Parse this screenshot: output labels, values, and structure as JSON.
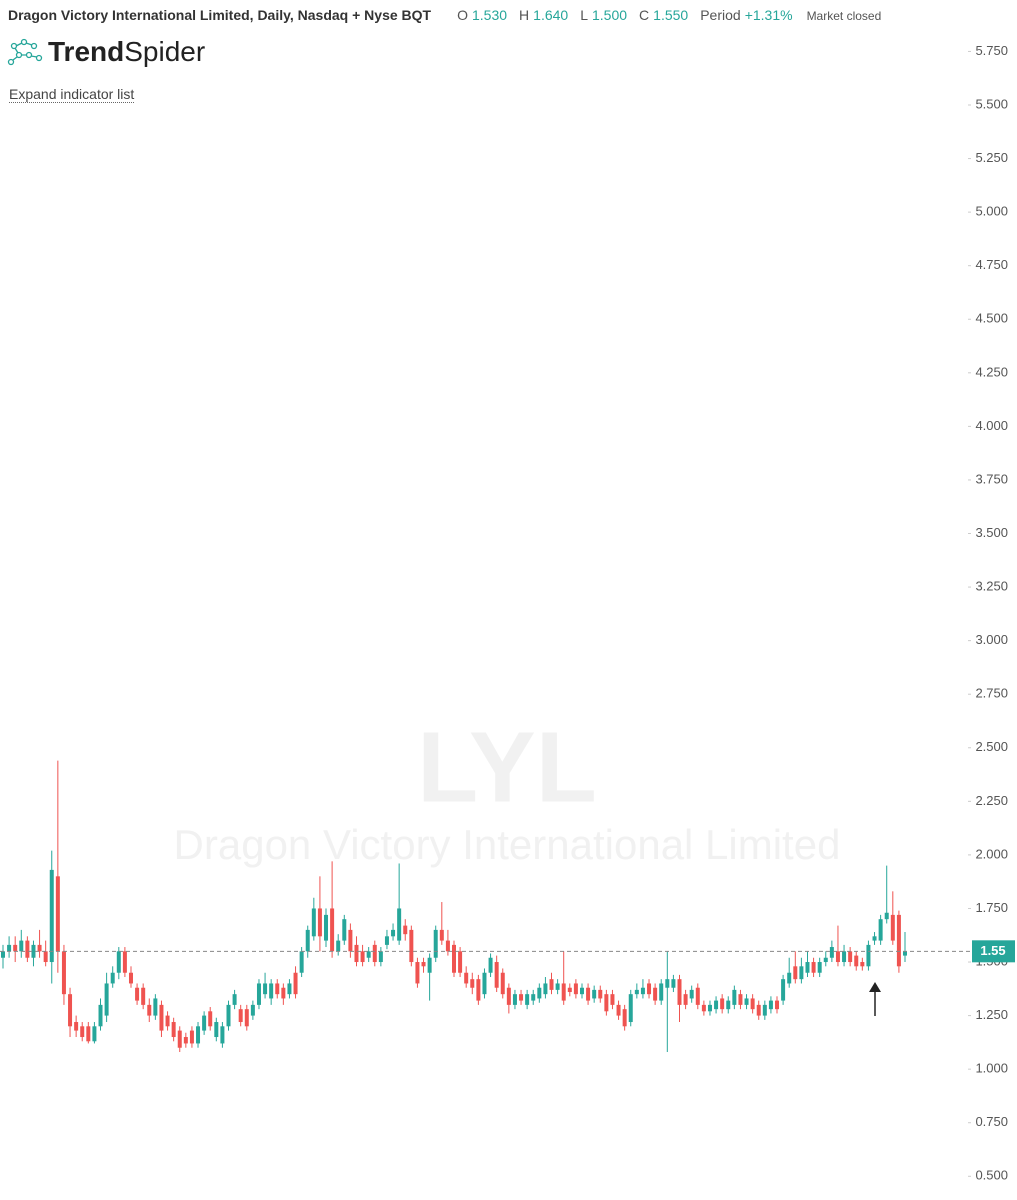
{
  "header": {
    "title": "Dragon Victory International Limited, Daily, Nasdaq + Nyse BQT",
    "ohlc": [
      {
        "key": "O",
        "value": "1.530"
      },
      {
        "key": "H",
        "value": "1.640"
      },
      {
        "key": "L",
        "value": "1.500"
      },
      {
        "key": "C",
        "value": "1.550"
      }
    ],
    "period_label": "Period",
    "period_value": "+1.31%",
    "status": "Market closed",
    "logo_bold": "Trend",
    "logo_regular": "Spider",
    "expand_link": "Expand indicator list"
  },
  "watermark": {
    "symbol": "LYL",
    "name": "Dragon Victory International Limited"
  },
  "chart_data": {
    "type": "candlestick",
    "up_color": "#26a69a",
    "down_color": "#ef5350",
    "ylim": [
      0.45,
      5.85
    ],
    "yticks": [
      {
        "value": 0.5,
        "label": "0.500"
      },
      {
        "value": 0.75,
        "label": "0.750"
      },
      {
        "value": 1.0,
        "label": "1.000"
      },
      {
        "value": 1.25,
        "label": "1.250"
      },
      {
        "value": 1.5,
        "label": "1.500"
      },
      {
        "value": 1.75,
        "label": "1.750"
      },
      {
        "value": 2.0,
        "label": "2.000"
      },
      {
        "value": 2.25,
        "label": "2.250"
      },
      {
        "value": 2.5,
        "label": "2.500"
      },
      {
        "value": 2.75,
        "label": "2.750"
      },
      {
        "value": 3.0,
        "label": "3.000"
      },
      {
        "value": 3.25,
        "label": "3.250"
      },
      {
        "value": 3.5,
        "label": "3.500"
      },
      {
        "value": 3.75,
        "label": "3.750"
      },
      {
        "value": 4.0,
        "label": "4.000"
      },
      {
        "value": 4.25,
        "label": "4.250"
      },
      {
        "value": 4.5,
        "label": "4.500"
      },
      {
        "value": 4.75,
        "label": "4.750"
      },
      {
        "value": 5.0,
        "label": "5.000"
      },
      {
        "value": 5.25,
        "label": "5.250"
      },
      {
        "value": 5.5,
        "label": "5.500"
      },
      {
        "value": 5.75,
        "label": "5.750"
      }
    ],
    "last_price": {
      "value": 1.55,
      "label": "1.55"
    },
    "ohlc": [
      [
        1.52,
        1.58,
        1.47,
        1.55
      ],
      [
        1.55,
        1.62,
        1.52,
        1.58
      ],
      [
        1.58,
        1.62,
        1.5,
        1.55
      ],
      [
        1.55,
        1.65,
        1.52,
        1.6
      ],
      [
        1.6,
        1.62,
        1.5,
        1.52
      ],
      [
        1.52,
        1.6,
        1.48,
        1.58
      ],
      [
        1.58,
        1.65,
        1.52,
        1.55
      ],
      [
        1.55,
        1.6,
        1.48,
        1.5
      ],
      [
        1.5,
        2.02,
        1.4,
        1.93
      ],
      [
        1.9,
        2.44,
        1.45,
        1.55
      ],
      [
        1.55,
        1.58,
        1.3,
        1.35
      ],
      [
        1.35,
        1.38,
        1.15,
        1.2
      ],
      [
        1.22,
        1.25,
        1.15,
        1.18
      ],
      [
        1.2,
        1.22,
        1.13,
        1.15
      ],
      [
        1.2,
        1.22,
        1.12,
        1.13
      ],
      [
        1.13,
        1.22,
        1.12,
        1.2
      ],
      [
        1.2,
        1.33,
        1.18,
        1.3
      ],
      [
        1.25,
        1.45,
        1.22,
        1.4
      ],
      [
        1.4,
        1.48,
        1.38,
        1.45
      ],
      [
        1.45,
        1.57,
        1.42,
        1.55
      ],
      [
        1.55,
        1.57,
        1.43,
        1.45
      ],
      [
        1.45,
        1.48,
        1.38,
        1.4
      ],
      [
        1.38,
        1.4,
        1.3,
        1.32
      ],
      [
        1.38,
        1.4,
        1.28,
        1.3
      ],
      [
        1.3,
        1.33,
        1.22,
        1.25
      ],
      [
        1.25,
        1.35,
        1.23,
        1.33
      ],
      [
        1.3,
        1.32,
        1.15,
        1.18
      ],
      [
        1.25,
        1.27,
        1.18,
        1.2
      ],
      [
        1.22,
        1.24,
        1.13,
        1.15
      ],
      [
        1.18,
        1.2,
        1.08,
        1.1
      ],
      [
        1.15,
        1.17,
        1.1,
        1.12
      ],
      [
        1.18,
        1.2,
        1.1,
        1.12
      ],
      [
        1.12,
        1.22,
        1.1,
        1.2
      ],
      [
        1.18,
        1.27,
        1.16,
        1.25
      ],
      [
        1.27,
        1.29,
        1.18,
        1.2
      ],
      [
        1.15,
        1.24,
        1.13,
        1.22
      ],
      [
        1.12,
        1.22,
        1.1,
        1.2
      ],
      [
        1.2,
        1.32,
        1.18,
        1.3
      ],
      [
        1.3,
        1.37,
        1.28,
        1.35
      ],
      [
        1.28,
        1.3,
        1.2,
        1.22
      ],
      [
        1.28,
        1.3,
        1.18,
        1.2
      ],
      [
        1.25,
        1.32,
        1.23,
        1.3
      ],
      [
        1.3,
        1.42,
        1.28,
        1.4
      ],
      [
        1.35,
        1.45,
        1.33,
        1.4
      ],
      [
        1.33,
        1.42,
        1.3,
        1.4
      ],
      [
        1.4,
        1.42,
        1.33,
        1.35
      ],
      [
        1.38,
        1.4,
        1.3,
        1.33
      ],
      [
        1.35,
        1.42,
        1.33,
        1.4
      ],
      [
        1.45,
        1.48,
        1.33,
        1.35
      ],
      [
        1.45,
        1.57,
        1.43,
        1.55
      ],
      [
        1.55,
        1.67,
        1.52,
        1.65
      ],
      [
        1.62,
        1.8,
        1.6,
        1.75
      ],
      [
        1.75,
        1.9,
        1.55,
        1.62
      ],
      [
        1.6,
        1.75,
        1.57,
        1.72
      ],
      [
        1.75,
        1.97,
        1.52,
        1.55
      ],
      [
        1.55,
        1.63,
        1.53,
        1.6
      ],
      [
        1.6,
        1.72,
        1.58,
        1.7
      ],
      [
        1.65,
        1.68,
        1.52,
        1.55
      ],
      [
        1.58,
        1.62,
        1.48,
        1.5
      ],
      [
        1.55,
        1.58,
        1.48,
        1.5
      ],
      [
        1.52,
        1.57,
        1.5,
        1.55
      ],
      [
        1.58,
        1.6,
        1.48,
        1.5
      ],
      [
        1.5,
        1.57,
        1.48,
        1.55
      ],
      [
        1.58,
        1.65,
        1.56,
        1.62
      ],
      [
        1.62,
        1.68,
        1.6,
        1.65
      ],
      [
        1.6,
        1.96,
        1.58,
        1.75
      ],
      [
        1.67,
        1.7,
        1.6,
        1.63
      ],
      [
        1.65,
        1.67,
        1.48,
        1.5
      ],
      [
        1.5,
        1.52,
        1.38,
        1.4
      ],
      [
        1.5,
        1.52,
        1.45,
        1.48
      ],
      [
        1.45,
        1.54,
        1.32,
        1.52
      ],
      [
        1.52,
        1.67,
        1.5,
        1.65
      ],
      [
        1.65,
        1.78,
        1.58,
        1.6
      ],
      [
        1.6,
        1.65,
        1.53,
        1.55
      ],
      [
        1.58,
        1.6,
        1.43,
        1.45
      ],
      [
        1.55,
        1.57,
        1.43,
        1.45
      ],
      [
        1.45,
        1.48,
        1.38,
        1.4
      ],
      [
        1.42,
        1.45,
        1.35,
        1.38
      ],
      [
        1.42,
        1.44,
        1.3,
        1.32
      ],
      [
        1.35,
        1.47,
        1.33,
        1.45
      ],
      [
        1.45,
        1.54,
        1.43,
        1.52
      ],
      [
        1.5,
        1.53,
        1.36,
        1.38
      ],
      [
        1.45,
        1.47,
        1.33,
        1.35
      ],
      [
        1.38,
        1.4,
        1.26,
        1.3
      ],
      [
        1.3,
        1.37,
        1.28,
        1.35
      ],
      [
        1.35,
        1.37,
        1.3,
        1.32
      ],
      [
        1.3,
        1.37,
        1.28,
        1.35
      ],
      [
        1.32,
        1.37,
        1.3,
        1.35
      ],
      [
        1.33,
        1.4,
        1.31,
        1.38
      ],
      [
        1.35,
        1.43,
        1.33,
        1.4
      ],
      [
        1.42,
        1.45,
        1.35,
        1.37
      ],
      [
        1.37,
        1.42,
        1.35,
        1.4
      ],
      [
        1.4,
        1.55,
        1.3,
        1.32
      ],
      [
        1.38,
        1.4,
        1.34,
        1.36
      ],
      [
        1.4,
        1.42,
        1.33,
        1.35
      ],
      [
        1.35,
        1.4,
        1.33,
        1.38
      ],
      [
        1.38,
        1.4,
        1.3,
        1.32
      ],
      [
        1.33,
        1.39,
        1.31,
        1.37
      ],
      [
        1.37,
        1.39,
        1.31,
        1.33
      ],
      [
        1.35,
        1.37,
        1.25,
        1.27
      ],
      [
        1.35,
        1.37,
        1.28,
        1.3
      ],
      [
        1.3,
        1.32,
        1.23,
        1.25
      ],
      [
        1.28,
        1.3,
        1.18,
        1.2
      ],
      [
        1.22,
        1.37,
        1.2,
        1.35
      ],
      [
        1.35,
        1.4,
        1.33,
        1.37
      ],
      [
        1.35,
        1.42,
        1.33,
        1.38
      ],
      [
        1.4,
        1.42,
        1.33,
        1.35
      ],
      [
        1.38,
        1.4,
        1.3,
        1.32
      ],
      [
        1.32,
        1.42,
        1.3,
        1.4
      ],
      [
        1.38,
        1.55,
        1.08,
        1.42
      ],
      [
        1.38,
        1.44,
        1.36,
        1.42
      ],
      [
        1.42,
        1.44,
        1.22,
        1.3
      ],
      [
        1.35,
        1.37,
        1.28,
        1.3
      ],
      [
        1.33,
        1.39,
        1.31,
        1.37
      ],
      [
        1.38,
        1.4,
        1.28,
        1.3
      ],
      [
        1.3,
        1.32,
        1.25,
        1.27
      ],
      [
        1.27,
        1.32,
        1.25,
        1.3
      ],
      [
        1.28,
        1.34,
        1.26,
        1.32
      ],
      [
        1.33,
        1.35,
        1.26,
        1.28
      ],
      [
        1.28,
        1.34,
        1.26,
        1.32
      ],
      [
        1.3,
        1.39,
        1.28,
        1.37
      ],
      [
        1.35,
        1.37,
        1.28,
        1.3
      ],
      [
        1.3,
        1.35,
        1.28,
        1.33
      ],
      [
        1.33,
        1.35,
        1.26,
        1.28
      ],
      [
        1.3,
        1.32,
        1.23,
        1.25
      ],
      [
        1.25,
        1.32,
        1.23,
        1.3
      ],
      [
        1.28,
        1.34,
        1.26,
        1.32
      ],
      [
        1.32,
        1.34,
        1.26,
        1.28
      ],
      [
        1.32,
        1.44,
        1.3,
        1.42
      ],
      [
        1.4,
        1.52,
        1.38,
        1.45
      ],
      [
        1.48,
        1.55,
        1.4,
        1.42
      ],
      [
        1.42,
        1.52,
        1.4,
        1.48
      ],
      [
        1.45,
        1.55,
        1.43,
        1.5
      ],
      [
        1.5,
        1.52,
        1.43,
        1.45
      ],
      [
        1.45,
        1.52,
        1.43,
        1.5
      ],
      [
        1.5,
        1.55,
        1.48,
        1.52
      ],
      [
        1.52,
        1.6,
        1.5,
        1.57
      ],
      [
        1.55,
        1.67,
        1.48,
        1.5
      ],
      [
        1.5,
        1.58,
        1.48,
        1.55
      ],
      [
        1.55,
        1.57,
        1.48,
        1.5
      ],
      [
        1.53,
        1.55,
        1.46,
        1.48
      ],
      [
        1.5,
        1.52,
        1.46,
        1.48
      ],
      [
        1.48,
        1.6,
        1.46,
        1.58
      ],
      [
        1.6,
        1.64,
        1.58,
        1.62
      ],
      [
        1.6,
        1.72,
        1.58,
        1.7
      ],
      [
        1.7,
        1.95,
        1.68,
        1.73
      ],
      [
        1.72,
        1.83,
        1.58,
        1.6
      ],
      [
        1.72,
        1.74,
        1.45,
        1.48
      ],
      [
        1.53,
        1.64,
        1.5,
        1.55
      ]
    ]
  }
}
